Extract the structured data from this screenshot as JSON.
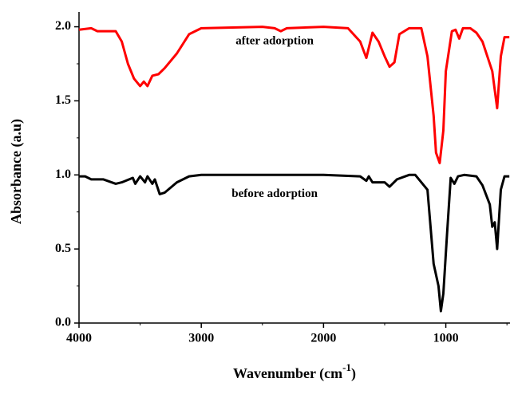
{
  "chart_data": {
    "type": "line",
    "xlabel": "Wavenumber (cm",
    "xlabel_sup": "-1",
    "xlabel_end": ")",
    "ylabel": "Absorbance (a.u)",
    "xlim": [
      4000,
      475
    ],
    "xticks": [
      4000,
      3000,
      2000,
      1000
    ],
    "xminorticks": [
      3500,
      2500,
      1500,
      500
    ],
    "ylim": [
      0,
      2.1
    ],
    "yticks": [
      {
        "value": 0,
        "label": "0.0"
      },
      0.5,
      {
        "value": 1,
        "label": "1.0"
      },
      1.5,
      {
        "value": 2,
        "label": "2.0"
      }
    ],
    "yminorticks": [
      0.25,
      0.75,
      1.25,
      1.75
    ],
    "annotations": [
      {
        "text": "after adorption",
        "x": 2400,
        "y": 1.9
      },
      {
        "text": "before adorption",
        "x": 2400,
        "y": 0.87
      }
    ],
    "series": [
      {
        "color": "#ff0000",
        "x": [
          4000,
          3900,
          3850,
          3700,
          3650,
          3600,
          3550,
          3500,
          3470,
          3440,
          3400,
          3350,
          3300,
          3200,
          3100,
          3000,
          2500,
          2400,
          2350,
          2300,
          2000,
          1800,
          1700,
          1650,
          1600,
          1550,
          1500,
          1460,
          1420,
          1380,
          1300,
          1200,
          1150,
          1100,
          1080,
          1050,
          1020,
          1000,
          950,
          920,
          890,
          860,
          800,
          750,
          700,
          620,
          580,
          550,
          520,
          480
        ],
        "values": [
          1.98,
          1.99,
          1.97,
          1.97,
          1.9,
          1.75,
          1.65,
          1.6,
          1.63,
          1.6,
          1.67,
          1.68,
          1.72,
          1.82,
          1.95,
          1.99,
          2.0,
          1.99,
          1.97,
          1.99,
          2.0,
          1.99,
          1.9,
          1.79,
          1.96,
          1.9,
          1.8,
          1.73,
          1.76,
          1.95,
          1.99,
          1.99,
          1.8,
          1.4,
          1.15,
          1.08,
          1.3,
          1.7,
          1.97,
          1.98,
          1.92,
          1.99,
          1.99,
          1.96,
          1.9,
          1.7,
          1.45,
          1.8,
          1.93,
          1.93
        ]
      },
      {
        "color": "#000000",
        "x": [
          4000,
          3950,
          3900,
          3800,
          3700,
          3650,
          3560,
          3540,
          3500,
          3460,
          3440,
          3400,
          3380,
          3340,
          3300,
          3200,
          3100,
          3000,
          2000,
          1700,
          1650,
          1630,
          1600,
          1500,
          1460,
          1400,
          1300,
          1250,
          1150,
          1100,
          1060,
          1040,
          1020,
          990,
          960,
          930,
          900,
          850,
          750,
          700,
          640,
          620,
          600,
          580,
          550,
          520,
          480
        ],
        "values": [
          0.99,
          0.99,
          0.97,
          0.97,
          0.94,
          0.95,
          0.98,
          0.94,
          0.99,
          0.95,
          0.99,
          0.94,
          0.97,
          0.87,
          0.88,
          0.95,
          0.99,
          1.0,
          1.0,
          0.99,
          0.96,
          0.99,
          0.95,
          0.95,
          0.92,
          0.97,
          1.0,
          1.0,
          0.9,
          0.4,
          0.25,
          0.08,
          0.2,
          0.6,
          0.98,
          0.94,
          0.99,
          1.0,
          0.99,
          0.93,
          0.8,
          0.65,
          0.68,
          0.5,
          0.9,
          0.99,
          0.99
        ]
      }
    ]
  }
}
